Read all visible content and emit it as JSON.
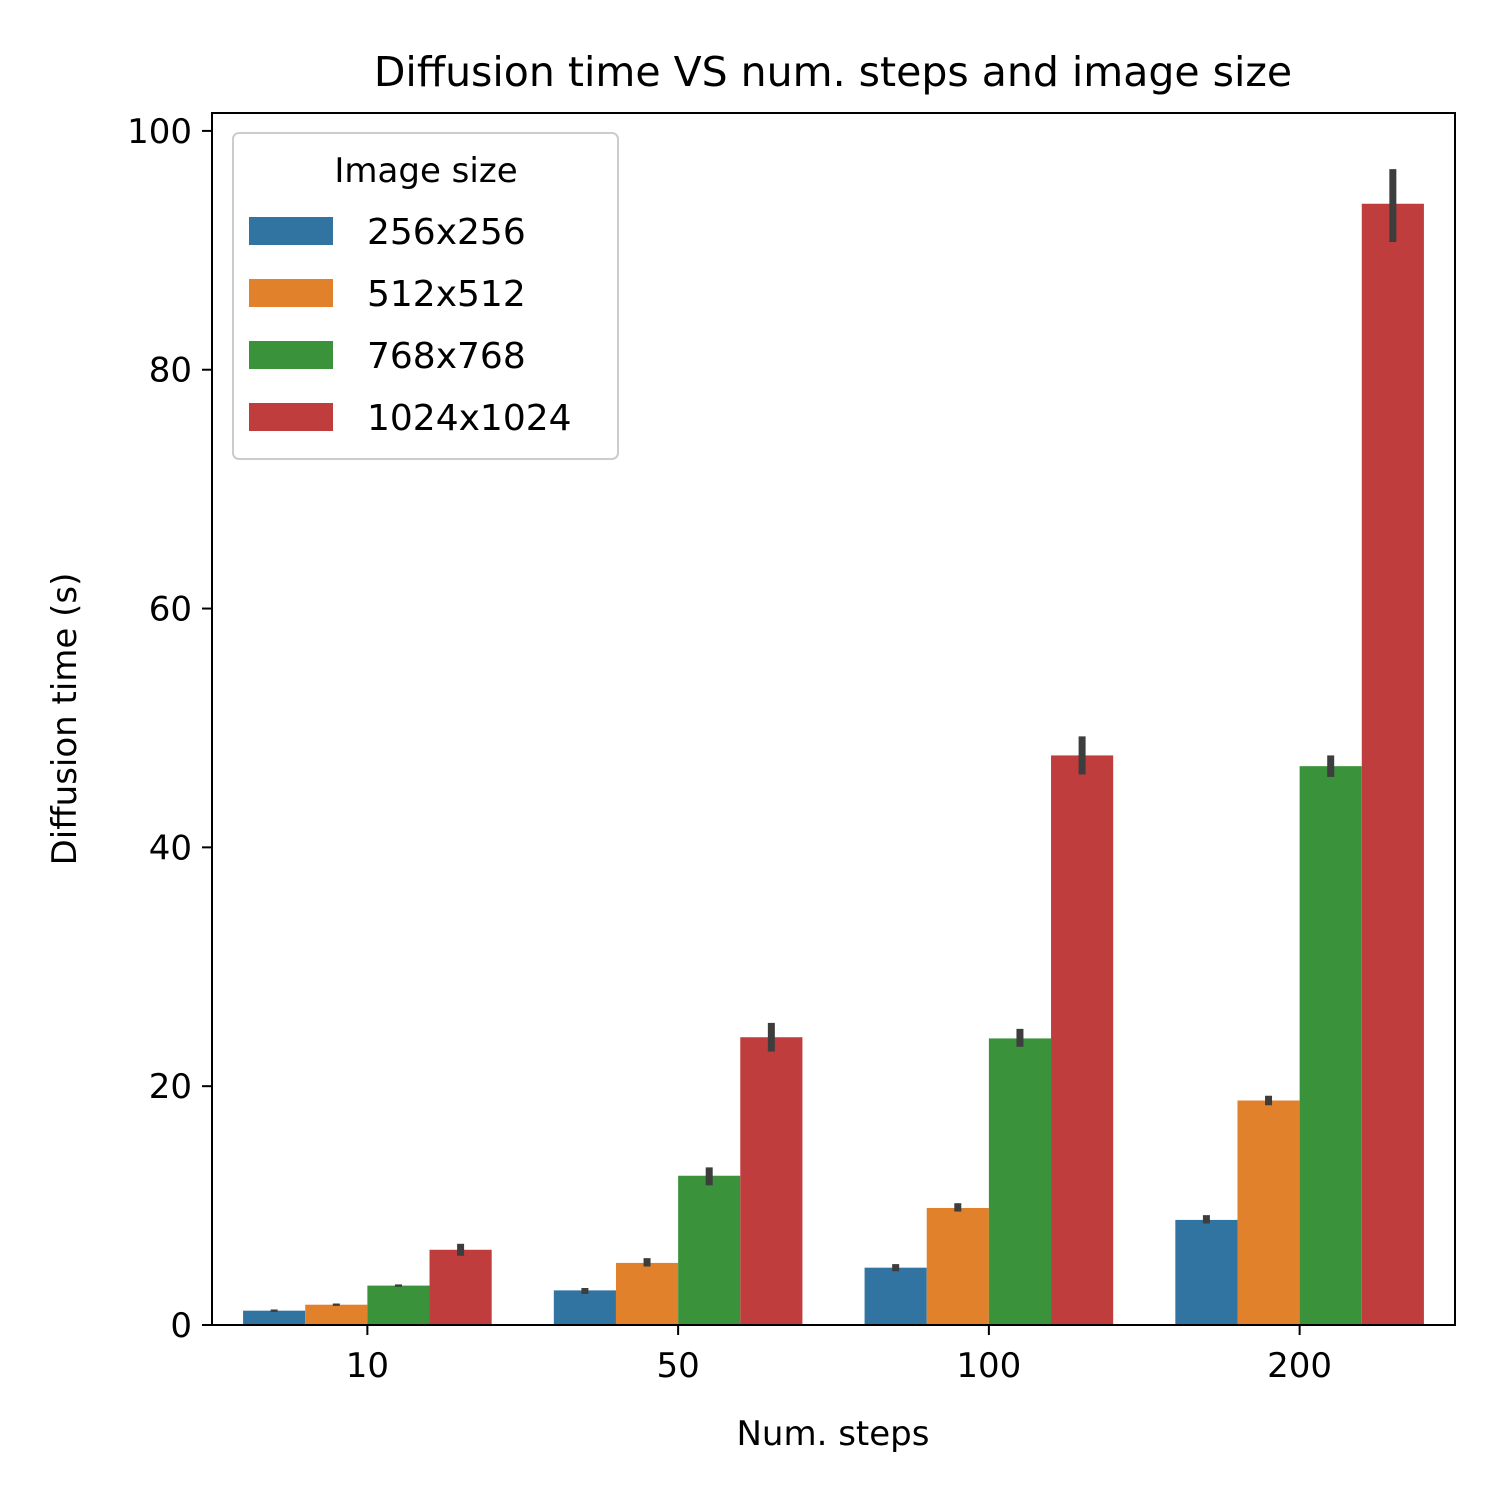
{
  "chart_data": {
    "type": "bar",
    "title": "Diffusion time VS num. steps and image size",
    "xlabel": "Num. steps",
    "ylabel": "Diffusion time (s)",
    "categories": [
      "10",
      "50",
      "100",
      "200"
    ],
    "ylim": [
      0,
      101.5
    ],
    "yticks": [
      0,
      20,
      40,
      60,
      80,
      100
    ],
    "grid": false,
    "legend": {
      "title": "Image size",
      "position": "top-left"
    },
    "series": [
      {
        "name": "256x256",
        "color": "#3274a1",
        "values": [
          1.2,
          2.9,
          4.8,
          8.8
        ],
        "ci": [
          [
            1.1,
            1.3
          ],
          [
            2.6,
            3.1
          ],
          [
            4.5,
            5.1
          ],
          [
            8.5,
            9.2
          ]
        ]
      },
      {
        "name": "512x512",
        "color": "#e1812c",
        "values": [
          1.7,
          5.2,
          9.8,
          18.8
        ],
        "ci": [
          [
            1.6,
            1.8
          ],
          [
            4.9,
            5.6
          ],
          [
            9.5,
            10.2
          ],
          [
            18.4,
            19.2
          ]
        ]
      },
      {
        "name": "768x768",
        "color": "#3a923a",
        "values": [
          3.3,
          12.5,
          24.0,
          46.8
        ],
        "ci": [
          [
            3.2,
            3.4
          ],
          [
            11.7,
            13.2
          ],
          [
            23.3,
            24.8
          ],
          [
            45.9,
            47.7
          ]
        ]
      },
      {
        "name": "1024x1024",
        "color": "#c03d3e",
        "values": [
          6.3,
          24.1,
          47.7,
          93.9
        ],
        "ci": [
          [
            5.8,
            6.8
          ],
          [
            22.9,
            25.3
          ],
          [
            46.1,
            49.3
          ],
          [
            90.7,
            96.8
          ]
        ]
      }
    ]
  }
}
